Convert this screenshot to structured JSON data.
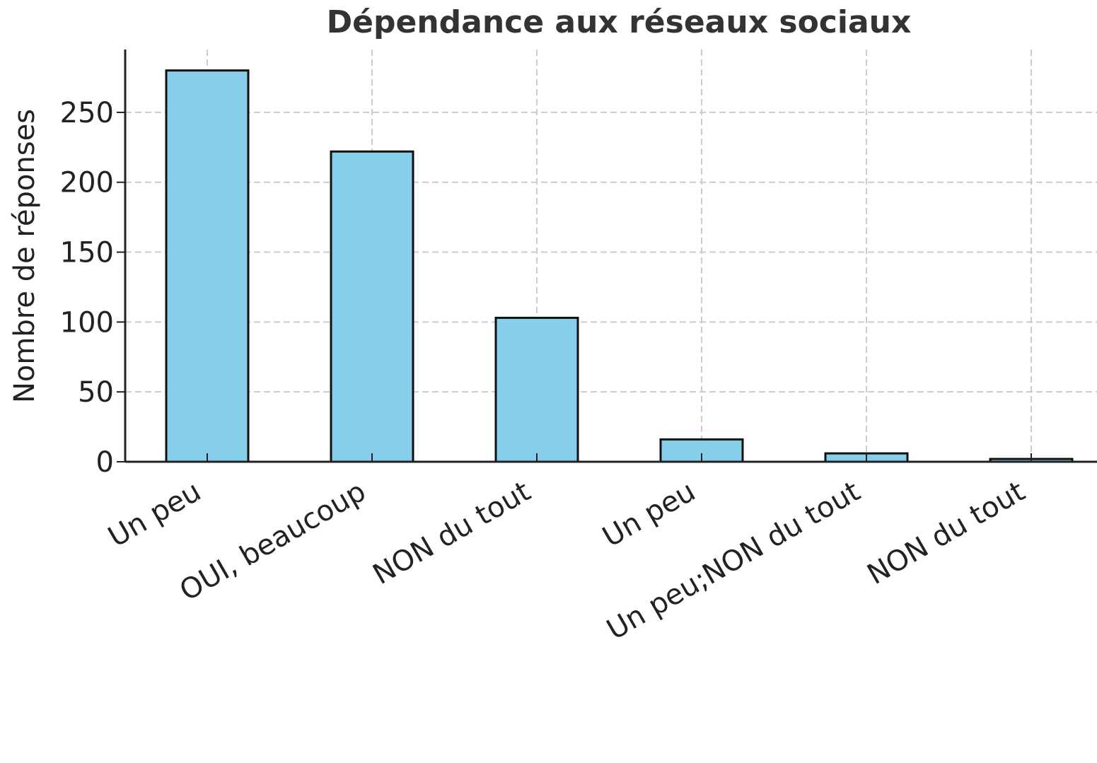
{
  "chart_data": {
    "type": "bar",
    "title": "Dépendance aux réseaux sociaux",
    "xlabel": "",
    "ylabel": "Nombre de réponses",
    "categories": [
      "Un peu",
      "OUI, beaucoup",
      "NON du tout",
      "Un peu",
      "Un peu;NON du tout",
      "NON du tout"
    ],
    "values": [
      280,
      222,
      103,
      16,
      6,
      2
    ],
    "ylim": [
      0,
      295
    ],
    "yticks": [
      0,
      50,
      100,
      150,
      200,
      250
    ],
    "ytick_labels": [
      "0",
      "50",
      "100",
      "150",
      "200",
      "250"
    ],
    "grid": true,
    "colors": {
      "bar_fill": "#87CEEB",
      "bar_edge": "#111111",
      "grid": "#cccccc",
      "axis": "#222222"
    }
  }
}
